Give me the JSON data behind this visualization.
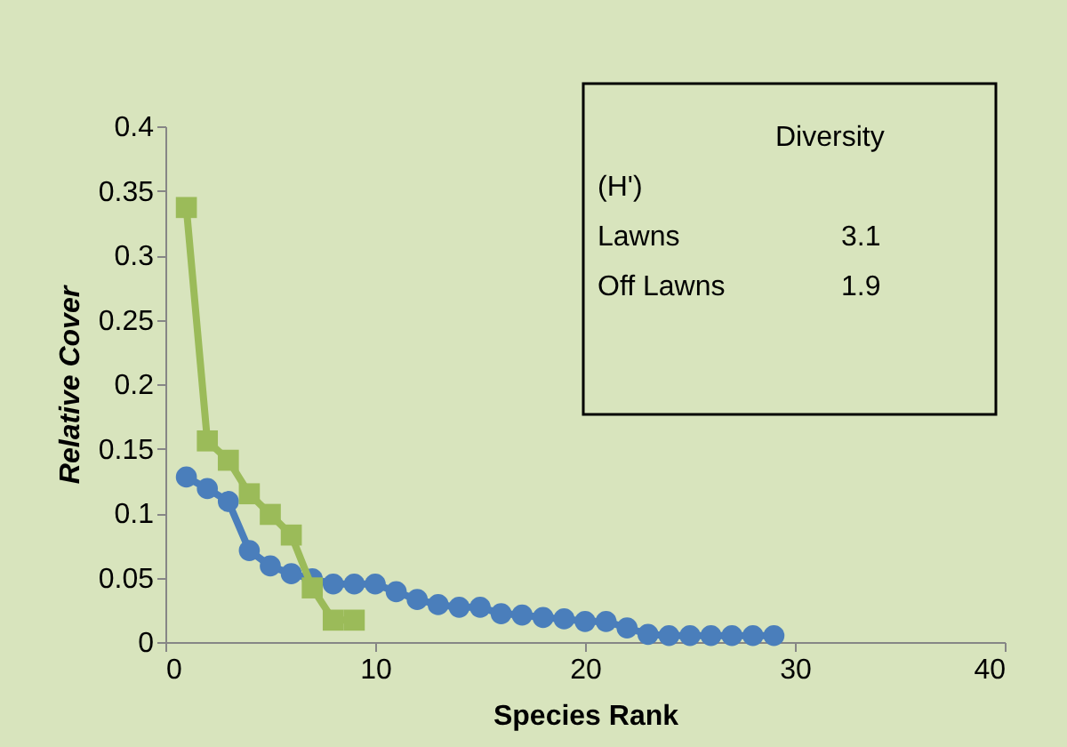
{
  "chart_data": {
    "type": "line",
    "xlabel": "Species Rank",
    "ylabel": "Relative Cover",
    "xlim": [
      0,
      40
    ],
    "xticks": [
      0,
      10,
      20,
      30,
      40
    ],
    "ylim": [
      0,
      0.4
    ],
    "yticks": [
      0,
      0.05,
      0.1,
      0.15,
      0.2,
      0.25,
      0.3,
      0.35,
      0.4
    ],
    "grid": false,
    "line_style": "solid",
    "series": [
      {
        "color": "#4a7ebb",
        "marker": "circle",
        "x": [
          1,
          2,
          3,
          4,
          5,
          6,
          7,
          8,
          9,
          10,
          11,
          12,
          13,
          14,
          15,
          16,
          17,
          18,
          19,
          20,
          21,
          22,
          23,
          24,
          25,
          26,
          27,
          28,
          29
        ],
        "values": [
          0.128,
          0.119,
          0.109,
          0.071,
          0.059,
          0.053,
          0.049,
          0.045,
          0.045,
          0.045,
          0.039,
          0.033,
          0.029,
          0.027,
          0.027,
          0.022,
          0.021,
          0.019,
          0.018,
          0.016,
          0.016,
          0.011,
          0.006,
          0.005,
          0.005,
          0.005,
          0.005,
          0.005,
          0.005
        ]
      },
      {
        "color": "#9bbb59",
        "marker": "square",
        "x": [
          1,
          2,
          3,
          4,
          5,
          6,
          7,
          8,
          9
        ],
        "values": [
          0.337,
          0.156,
          0.141,
          0.115,
          0.099,
          0.083,
          0.042,
          0.017,
          0.017
        ]
      }
    ],
    "annotations": [
      "Diversity",
      "(H')",
      "Lawns",
      "3.1",
      "Off Lawns",
      "1.9"
    ]
  }
}
